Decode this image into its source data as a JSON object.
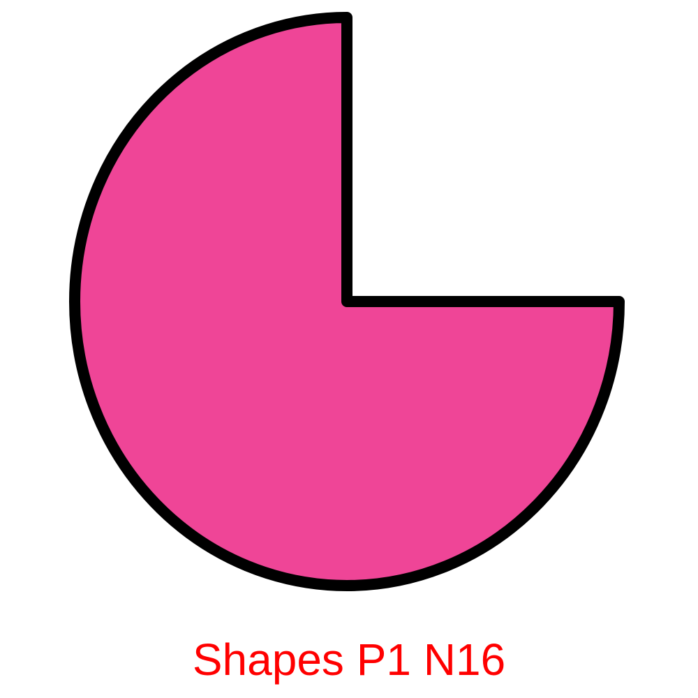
{
  "shape": {
    "kind": "three-quarter circle",
    "fill_color": "#EF4597",
    "stroke_color": "#000000"
  },
  "caption": {
    "text": "Shapes P1 N16",
    "color": "#FF0000"
  }
}
